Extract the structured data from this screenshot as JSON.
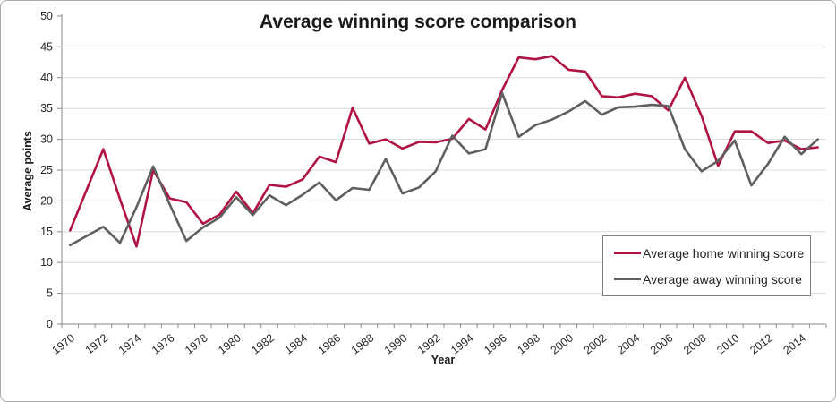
{
  "chart": {
    "title": "Average winning score comparison",
    "x_axis_title": "Year",
    "y_axis_title": "Average points"
  },
  "legend": {
    "items": [
      {
        "label": "Average home winning score",
        "color": "#B01342"
      },
      {
        "label": "Average away winning score",
        "color": "#5F5F5F"
      }
    ]
  },
  "chart_data": {
    "type": "line",
    "title": "Average winning score comparison",
    "xlabel": "Year",
    "ylabel": "Average points",
    "ylim": [
      0,
      50
    ],
    "yticks": [
      0,
      5,
      10,
      15,
      20,
      25,
      30,
      35,
      40,
      45,
      50
    ],
    "grid": "horizontal",
    "legend_position": "right-middle",
    "x": [
      1970,
      1971,
      1972,
      1973,
      1974,
      1975,
      1976,
      1977,
      1978,
      1979,
      1980,
      1981,
      1982,
      1983,
      1984,
      1985,
      1986,
      1987,
      1988,
      1989,
      1990,
      1991,
      1992,
      1993,
      1994,
      1995,
      1996,
      1997,
      1998,
      1999,
      2000,
      2001,
      2002,
      2003,
      2004,
      2005,
      2006,
      2007,
      2008,
      2009,
      2010,
      2011,
      2012,
      2013,
      2014,
      2015
    ],
    "xtick_labels": [
      1970,
      1972,
      1974,
      1976,
      1978,
      1980,
      1982,
      1984,
      1986,
      1988,
      1990,
      1992,
      1994,
      1996,
      1998,
      2000,
      2002,
      2004,
      2006,
      2008,
      2010,
      2012,
      2014
    ],
    "series": [
      {
        "name": "Average home winning score",
        "color": "#B01342",
        "values": [
          15.2,
          21.8,
          28.4,
          20.3,
          12.6,
          25.0,
          20.4,
          19.8,
          16.3,
          17.8,
          21.5,
          18.0,
          22.6,
          22.3,
          23.5,
          27.2,
          26.3,
          35.1,
          29.3,
          30.0,
          28.5,
          29.6,
          29.5,
          30.1,
          33.3,
          31.6,
          38.0,
          43.3,
          43.0,
          43.5,
          41.3,
          41.0,
          37.0,
          36.8,
          37.4,
          37.0,
          34.7,
          40.0,
          33.8,
          25.7,
          31.3,
          31.3,
          29.4,
          29.8,
          28.4,
          28.7
        ]
      },
      {
        "name": "Average away winning score",
        "color": "#5F5F5F",
        "values": [
          12.8,
          14.3,
          15.8,
          13.2,
          19.0,
          25.6,
          19.4,
          13.5,
          15.7,
          17.3,
          20.6,
          17.7,
          20.9,
          19.3,
          21.0,
          23.0,
          20.1,
          22.1,
          21.8,
          26.8,
          21.2,
          22.2,
          24.8,
          30.6,
          27.7,
          28.4,
          37.5,
          30.4,
          32.3,
          33.2,
          34.5,
          36.2,
          34.0,
          35.2,
          35.3,
          35.6,
          35.4,
          28.4,
          24.8,
          26.5,
          29.8,
          22.5,
          26.0,
          30.4,
          27.6,
          30.0
        ]
      }
    ],
    "colors": {
      "gridline": "#D9D9D9",
      "axis": "#898989",
      "tick_label": "#262626"
    }
  }
}
